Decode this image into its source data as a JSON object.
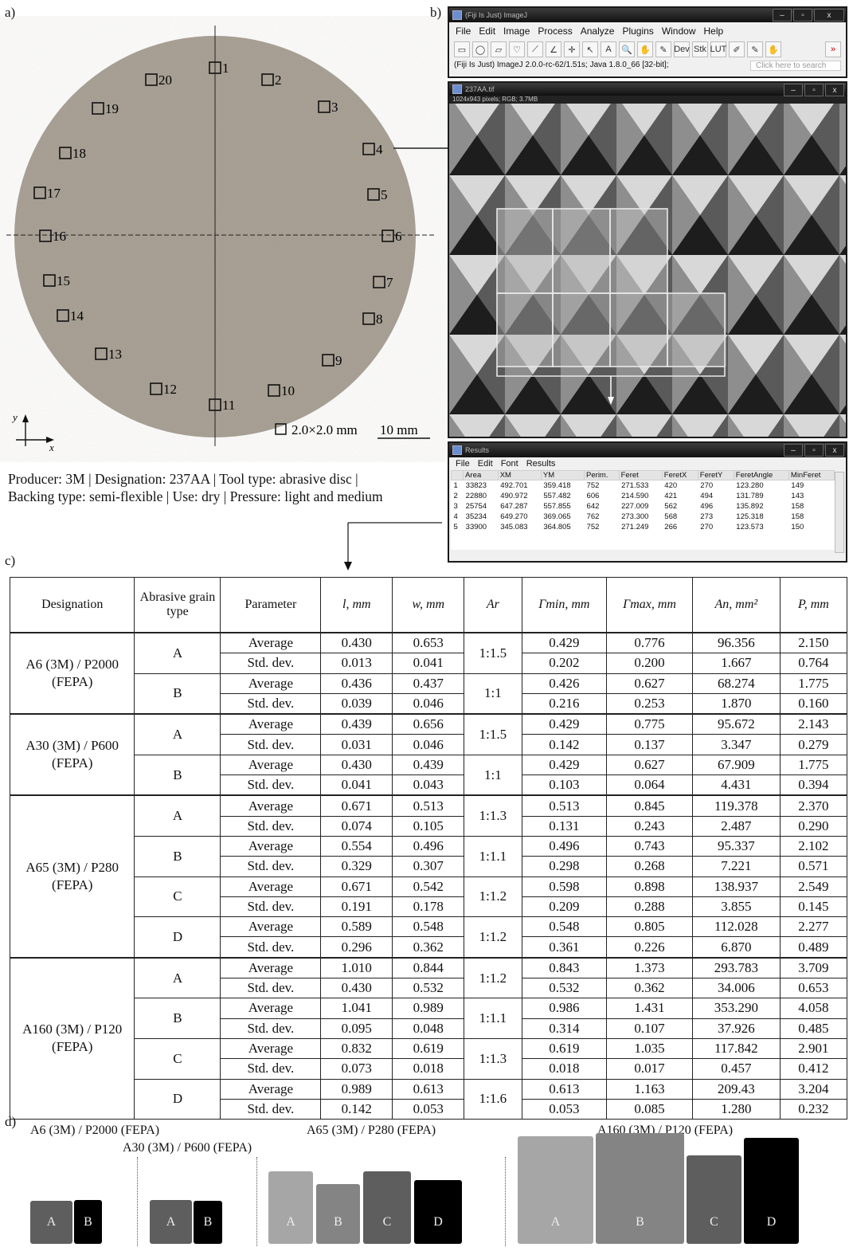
{
  "panels": {
    "a": "a)",
    "b": "b)",
    "c": "c)",
    "d": "d)"
  },
  "disc": {
    "sites": [
      "1",
      "2",
      "3",
      "4",
      "5",
      "6",
      "7",
      "8",
      "9",
      "10",
      "11",
      "12",
      "13",
      "14",
      "15",
      "16",
      "17",
      "18",
      "19",
      "20"
    ],
    "axis_y": "y",
    "axis_x": "x",
    "square_label": "2.0×2.0 mm",
    "scale_label": "10 mm",
    "caption_line1": "Producer: 3M | Designation:  237AA | Tool type: abrasive disc |",
    "caption_line2": "Backing type: semi-flexible | Use: dry |  Pressure: light and medium"
  },
  "imagej": {
    "main_title": "(Fiji Is Just) ImageJ",
    "menu": [
      "File",
      "Edit",
      "Image",
      "Process",
      "Analyze",
      "Plugins",
      "Window",
      "Help"
    ],
    "tools": [
      "▭",
      "◯",
      "▱",
      "♡",
      "⟋",
      "∠",
      "✛",
      "↖",
      "A",
      "🔍",
      "✋",
      "✎",
      "Dev",
      "Stk",
      "LUT",
      "✐",
      "✎",
      "✋",
      "»"
    ],
    "status": "(Fiji Is Just) ImageJ 2.0.0-rc-62/1.51s; Java 1.8.0_66 [32-bit];",
    "search_placeholder": "Click here to search",
    "image_title": "237AA.tif",
    "image_info": "1024x943 pixels; RGB; 3.7MB",
    "results_title": "Results",
    "results_menu": [
      "File",
      "Edit",
      "Font",
      "Results"
    ],
    "results_headers": [
      "",
      "Area",
      "XM",
      "YM",
      "Perim.",
      "Feret",
      "FeretX",
      "FeretY",
      "FeretAngle",
      "MinFeret"
    ],
    "results_rows": [
      [
        "1",
        "33823",
        "492.701",
        "359.418",
        "752",
        "271.533",
        "420",
        "270",
        "123.280",
        "149"
      ],
      [
        "2",
        "22880",
        "490.972",
        "557.482",
        "606",
        "214.590",
        "421",
        "494",
        "131.789",
        "143"
      ],
      [
        "3",
        "25754",
        "647.287",
        "557.855",
        "642",
        "227.009",
        "562",
        "496",
        "135.892",
        "158"
      ],
      [
        "4",
        "35234",
        "649.270",
        "369.065",
        "762",
        "273.300",
        "568",
        "273",
        "125.318",
        "158"
      ],
      [
        "5",
        "33900",
        "345.083",
        "364.805",
        "752",
        "271.249",
        "266",
        "270",
        "123.573",
        "150"
      ]
    ]
  },
  "table": {
    "headers": [
      "Designation",
      "Abrasive grain type",
      "Parameter",
      "l, mm",
      "w, mm",
      "Ar",
      "Γmin, mm",
      "Γmax, mm",
      "An, mm²",
      "P, mm"
    ],
    "groups": [
      {
        "designation": "A6 (3M) / P2000 (FEPA)",
        "grains": [
          {
            "type": "A",
            "ar": "1:1.5",
            "avg": [
              "0.430",
              "0.653",
              "0.429",
              "0.776",
              "96.356",
              "2.150"
            ],
            "std": [
              "0.013",
              "0.041",
              "0.202",
              "0.200",
              "1.667",
              "0.764"
            ]
          },
          {
            "type": "B",
            "ar": "1:1",
            "avg": [
              "0.436",
              "0.437",
              "0.426",
              "0.627",
              "68.274",
              "1.775"
            ],
            "std": [
              "0.039",
              "0.046",
              "0.216",
              "0.253",
              "1.870",
              "0.160"
            ]
          }
        ]
      },
      {
        "designation": "A30 (3M) / P600 (FEPA)",
        "grains": [
          {
            "type": "A",
            "ar": "1:1.5",
            "avg": [
              "0.439",
              "0.656",
              "0.429",
              "0.775",
              "95.672",
              "2.143"
            ],
            "std": [
              "0.031",
              "0.046",
              "0.142",
              "0.137",
              "3.347",
              "0.279"
            ]
          },
          {
            "type": "B",
            "ar": "1:1",
            "avg": [
              "0.430",
              "0.439",
              "0.429",
              "0.627",
              "67.909",
              "1.775"
            ],
            "std": [
              "0.041",
              "0.043",
              "0.103",
              "0.064",
              "4.431",
              "0.394"
            ]
          }
        ]
      },
      {
        "designation": "A65 (3M) / P280 (FEPA)",
        "grains": [
          {
            "type": "A",
            "ar": "1:1.3",
            "avg": [
              "0.671",
              "0.513",
              "0.513",
              "0.845",
              "119.378",
              "2.370"
            ],
            "std": [
              "0.074",
              "0.105",
              "0.131",
              "0.243",
              "2.487",
              "0.290"
            ]
          },
          {
            "type": "B",
            "ar": "1:1.1",
            "avg": [
              "0.554",
              "0.496",
              "0.496",
              "0.743",
              "95.337",
              "2.102"
            ],
            "std": [
              "0.329",
              "0.307",
              "0.298",
              "0.268",
              "7.221",
              "0.571"
            ]
          },
          {
            "type": "C",
            "ar": "1:1.2",
            "avg": [
              "0.671",
              "0.542",
              "0.598",
              "0.898",
              "138.937",
              "2.549"
            ],
            "std": [
              "0.191",
              "0.178",
              "0.209",
              "0.288",
              "3.855",
              "0.145"
            ]
          },
          {
            "type": "D",
            "ar": "1:1.2",
            "avg": [
              "0.589",
              "0.548",
              "0.548",
              "0.805",
              "112.028",
              "2.277"
            ],
            "std": [
              "0.296",
              "0.362",
              "0.361",
              "0.226",
              "6.870",
              "0.489"
            ]
          }
        ]
      },
      {
        "designation": "A160 (3M) / P120 (FEPA)",
        "grains": [
          {
            "type": "A",
            "ar": "1:1.2",
            "avg": [
              "1.010",
              "0.844",
              "0.843",
              "1.373",
              "293.783",
              "3.709"
            ],
            "std": [
              "0.430",
              "0.532",
              "0.532",
              "0.362",
              "34.006",
              "0.653"
            ]
          },
          {
            "type": "B",
            "ar": "1:1.1",
            "avg": [
              "1.041",
              "0.989",
              "0.986",
              "1.431",
              "353.290",
              "4.058"
            ],
            "std": [
              "0.095",
              "0.048",
              "0.314",
              "0.107",
              "37.926",
              "0.485"
            ]
          },
          {
            "type": "C",
            "ar": "1:1.3",
            "avg": [
              "0.832",
              "0.619",
              "0.619",
              "1.035",
              "117.842",
              "2.901"
            ],
            "std": [
              "0.073",
              "0.018",
              "0.018",
              "0.017",
              "0.457",
              "0.412"
            ]
          },
          {
            "type": "D",
            "ar": "1:1.6",
            "avg": [
              "0.989",
              "0.613",
              "0.613",
              "1.163",
              "209.43",
              "3.204"
            ],
            "std": [
              "0.142",
              "0.053",
              "0.053",
              "0.085",
              "1.280",
              "0.232"
            ]
          }
        ]
      }
    ],
    "param_avg": "Average",
    "param_std": "Std. dev."
  },
  "bars": {
    "groups": [
      {
        "title": "A6 (3M) / P2000 (FEPA)",
        "items": [
          {
            "label": "A",
            "color": "#5e5e5e"
          },
          {
            "label": "B",
            "color": "#000000"
          }
        ]
      },
      {
        "title": "A30 (3M) / P600 (FEPA)",
        "items": [
          {
            "label": "A",
            "color": "#5e5e5e"
          },
          {
            "label": "B",
            "color": "#000000"
          }
        ]
      },
      {
        "title": "A65 (3M) / P280 (FEPA)",
        "items": [
          {
            "label": "A",
            "color": "#a6a6a6"
          },
          {
            "label": "B",
            "color": "#848484"
          },
          {
            "label": "C",
            "color": "#5e5e5e"
          },
          {
            "label": "D",
            "color": "#000000"
          }
        ]
      },
      {
        "title": "A160 (3M) / P120 (FEPA)",
        "items": [
          {
            "label": "A",
            "color": "#a6a6a6"
          },
          {
            "label": "B",
            "color": "#848484"
          },
          {
            "label": "C",
            "color": "#5e5e5e"
          },
          {
            "label": "D",
            "color": "#000000"
          }
        ]
      }
    ]
  }
}
